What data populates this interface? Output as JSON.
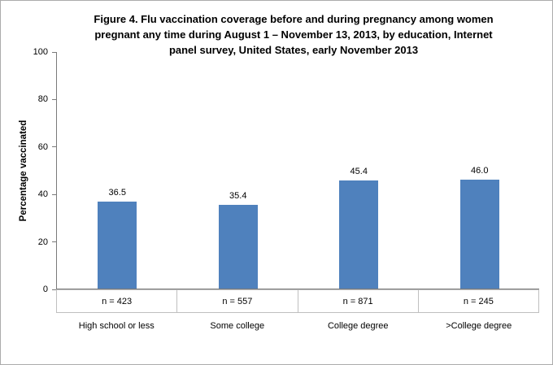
{
  "chart_data": {
    "type": "bar",
    "title": "Figure 4. Flu vaccination coverage before and during pregnancy among women pregnant any time during August 1 – November 13, 2013, by education, Internet panel survey, United States, early November 2013",
    "title_lines": [
      "Figure 4. Flu vaccination coverage before and during pregnancy among women",
      "pregnant any time during August 1 – November 13, 2013, by education, Internet",
      "panel survey, United States, early November 2013"
    ],
    "categories": [
      "High school or less",
      "Some college",
      "College degree",
      ">College degree"
    ],
    "values": [
      36.5,
      35.4,
      45.4,
      46.0
    ],
    "value_labels": [
      "36.5",
      "35.4",
      "45.4",
      "46.0"
    ],
    "sample_sizes": [
      "n = 423",
      "n = 557",
      "n = 871",
      "n = 245"
    ],
    "xlabel": "",
    "ylabel": "Percentage vaccinated",
    "ylim": [
      0,
      100
    ],
    "yticks": [
      0,
      20,
      40,
      60,
      80,
      100
    ],
    "grid": false,
    "legend": "none",
    "bar_color": "#4F81BD",
    "axis_color": "#7a7a7a"
  }
}
